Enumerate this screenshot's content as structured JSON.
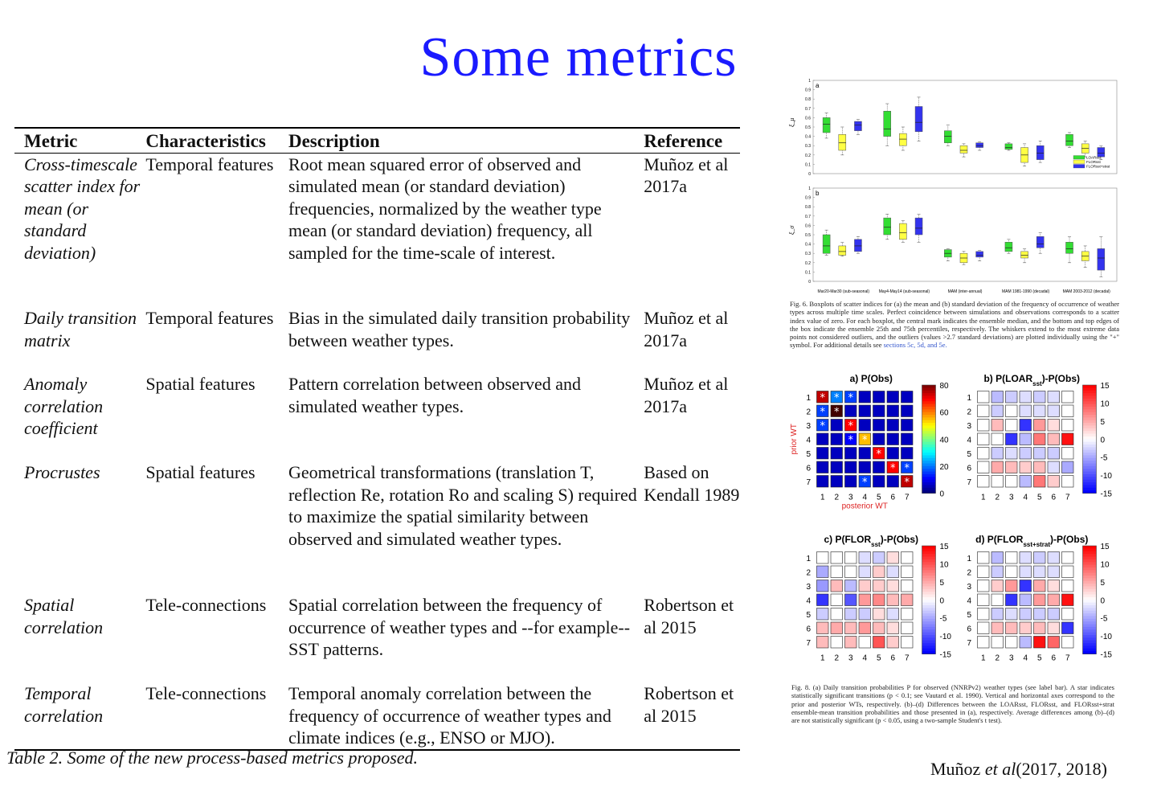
{
  "title": "Some metrics",
  "table": {
    "headers": [
      "Metric",
      "Characteristics",
      "Description",
      "Reference"
    ],
    "rows": [
      {
        "metric": "Cross-timescale scatter index for mean (or standard deviation)",
        "characteristics": "Temporal features",
        "description": "Root mean squared error of observed and simulated mean (or standard deviation) frequencies, normalized by the weather type mean (or standard deviation) frequency, all sampled for the time-scale of interest.",
        "reference": "Muñoz et al 2017a"
      },
      {
        "metric": "Daily transition matrix",
        "characteristics": "Temporal features",
        "description": "Bias in the simulated daily transition probability between weather types.",
        "reference": "Muñoz et al 2017a"
      },
      {
        "metric": "Anomaly correlation coefficient",
        "characteristics": "Spatial features",
        "description": "Pattern correlation between observed and simulated weather types.",
        "reference": "Muñoz et al 2017a"
      },
      {
        "metric": "Procrustes",
        "characteristics": "Spatial features",
        "description": "Geometrical transformations (translation T, reflection Re, rotation Ro and scaling S) required to maximize the spatial similarity between observed and simulated weather types.",
        "reference": "Based on Kendall 1989"
      },
      {
        "metric": "Spatial correlation",
        "characteristics": "Tele-connections",
        "description": "Spatial correlation between the frequency of occurrence of weather types and --for example-- SST patterns.",
        "reference": "Robertson et al 2015"
      },
      {
        "metric": "Temporal correlation",
        "characteristics": "Tele-connections",
        "description": "Temporal anomaly correlation between the frequency of occurrence of weather types and climate indices (e.g., ENSO or MJO).",
        "reference": "Robertson et al 2015"
      }
    ]
  },
  "table_caption": "Table 2. Some of the new process-based metrics proposed.",
  "credit": {
    "author": "Muñoz",
    "etal": "et al",
    "years": "(2017, 2018)"
  },
  "fig6": {
    "panel_a_label": "a",
    "panel_b_label": "b",
    "ylabel_a": "ξ_μ",
    "ylabel_b": "ξ_σ",
    "yticks": [
      "0",
      "0.1",
      "0.2",
      "0.3",
      "0.4",
      "0.5",
      "0.6",
      "0.7",
      "0.8",
      "0.9",
      "1"
    ],
    "groups": [
      "Mar20-Mar30 (sub-seasonal)",
      "May4-May14 (sub-seasonal)",
      "MAM (inter-annual)",
      "MAM 1981-1990 (decadal)",
      "MAM 2003-2012 (decadal)"
    ],
    "legend": [
      {
        "name": "LOARsst",
        "color": "#33dd33"
      },
      {
        "name": "FLORsst",
        "color": "#ffff44"
      },
      {
        "name": "FLORsst+strat",
        "color": "#3333ee"
      }
    ],
    "caption_prefix": "Fig. 6. Boxplots of scatter indices for (a) the mean and (b) standard deviation of the frequency of occurrence of weather types across multiple time scales. Perfect coincidence between simulations and observations corresponds to a scatter index value of zero. For each boxplot, the central mark indicates the ensemble median, and the bottom and top edges of the box indicate the ensemble 25th and 75th percentiles, respectively. The whiskers extend to the most extreme data points not considered outliers, and the outliers (values >2.7 standard deviations) are plotted individually using the \"+\" symbol. For additional details see ",
    "caption_links": "sections 5c, 5d, and 5e.",
    "chart_data": {
      "type": "boxplot",
      "panels": [
        {
          "name": "a",
          "boxes": [
            [
              [
                0.38,
                0.44,
                0.53,
                0.6,
                0.65
              ],
              [
                0.2,
                0.25,
                0.33,
                0.42,
                0.5
              ],
              [
                0.42,
                0.46,
                0.52,
                0.56,
                0.58
              ]
            ],
            [
              [
                0.3,
                0.4,
                0.48,
                0.67,
                0.75
              ],
              [
                0.25,
                0.3,
                0.37,
                0.43,
                0.5
              ],
              [
                0.35,
                0.45,
                0.55,
                0.72,
                0.82
              ]
            ],
            [
              [
                0.3,
                0.33,
                0.4,
                0.46,
                0.52
              ],
              [
                0.18,
                0.22,
                0.25,
                0.3,
                0.32
              ],
              [
                0.25,
                0.28,
                0.3,
                0.33,
                0.34
              ]
            ],
            [
              [
                0.25,
                0.26,
                0.28,
                0.32,
                0.33
              ],
              [
                0.08,
                0.12,
                0.2,
                0.28,
                0.32
              ],
              [
                0.12,
                0.15,
                0.22,
                0.3,
                0.35
              ]
            ],
            [
              [
                0.28,
                0.3,
                0.35,
                0.42,
                0.44
              ],
              [
                0.18,
                0.22,
                0.27,
                0.32,
                0.35
              ],
              [
                0.15,
                0.18,
                0.22,
                0.28,
                0.3
              ]
            ]
          ]
        },
        {
          "name": "b",
          "boxes": [
            [
              [
                0.28,
                0.3,
                0.38,
                0.5,
                0.55
              ],
              [
                0.27,
                0.28,
                0.32,
                0.38,
                0.42
              ],
              [
                0.3,
                0.32,
                0.38,
                0.45,
                0.48
              ]
            ],
            [
              [
                0.45,
                0.5,
                0.58,
                0.68,
                0.72
              ],
              [
                0.42,
                0.45,
                0.52,
                0.62,
                0.65
              ],
              [
                0.42,
                0.5,
                0.57,
                0.68,
                0.72
              ]
            ],
            [
              [
                0.22,
                0.26,
                0.3,
                0.34,
                0.35
              ],
              [
                0.18,
                0.2,
                0.25,
                0.3,
                0.32
              ],
              [
                0.22,
                0.26,
                0.28,
                0.32,
                0.33
              ]
            ],
            [
              [
                0.3,
                0.32,
                0.36,
                0.42,
                0.45
              ],
              [
                0.2,
                0.25,
                0.28,
                0.32,
                0.35
              ],
              [
                0.3,
                0.36,
                0.4,
                0.48,
                0.52
              ]
            ],
            [
              [
                0.2,
                0.3,
                0.35,
                0.42,
                0.48
              ],
              [
                0.15,
                0.22,
                0.27,
                0.32,
                0.38
              ],
              [
                0.05,
                0.12,
                0.25,
                0.35,
                0.48
              ]
            ]
          ]
        }
      ],
      "ylim": [
        0,
        1
      ]
    }
  },
  "fig8": {
    "panels": [
      {
        "title": "a) P(Obs)",
        "colorbar_ticks": [
          "80",
          "60",
          "40",
          "20",
          "0"
        ]
      },
      {
        "title": "b) P(LOAR",
        "sub": "sst",
        "suffix": ")-P(Obs)",
        "colorbar_ticks": [
          "15",
          "10",
          "5",
          "0",
          "-5",
          "-10",
          "-15"
        ]
      },
      {
        "title": "c) P(FLOR",
        "sub": "sst",
        "suffix": ")-P(Obs)",
        "colorbar_ticks": [
          "15",
          "10",
          "5",
          "0",
          "-5",
          "-10",
          "-15"
        ]
      },
      {
        "title": "d) P(FLOR",
        "sub": "sst+strat",
        "suffix": ")-P(Obs)",
        "colorbar_ticks": [
          "15",
          "10",
          "5",
          "0",
          "-5",
          "-10",
          "-15"
        ]
      }
    ],
    "axis_ticks": [
      "1",
      "2",
      "3",
      "4",
      "5",
      "6",
      "7"
    ],
    "ylabel": "prior WT",
    "xlabel": "posterior WT",
    "chart_data": {
      "type": "heatmap",
      "a_obs": [
        [
          75,
          20,
          15,
          5,
          5,
          5,
          5
        ],
        [
          15,
          85,
          5,
          5,
          5,
          5,
          5
        ],
        [
          15,
          5,
          70,
          5,
          5,
          5,
          5
        ],
        [
          5,
          5,
          10,
          55,
          5,
          5,
          5
        ],
        [
          5,
          5,
          5,
          5,
          70,
          5,
          5
        ],
        [
          5,
          5,
          5,
          5,
          5,
          70,
          15
        ],
        [
          5,
          5,
          5,
          15,
          5,
          5,
          75
        ]
      ],
      "a_stars": [
        [
          0,
          0
        ],
        [
          0,
          1
        ],
        [
          0,
          2
        ],
        [
          1,
          0
        ],
        [
          1,
          1
        ],
        [
          2,
          0
        ],
        [
          2,
          2
        ],
        [
          3,
          2
        ],
        [
          3,
          3
        ],
        [
          4,
          4
        ],
        [
          5,
          5
        ],
        [
          5,
          6
        ],
        [
          6,
          3
        ],
        [
          6,
          6
        ]
      ],
      "b_diff": [
        [
          0,
          -4,
          -3,
          -2,
          -3,
          -2,
          0
        ],
        [
          0,
          -3,
          0,
          -2,
          -2,
          -2,
          0
        ],
        [
          0,
          4,
          0,
          -12,
          6,
          2,
          0
        ],
        [
          0,
          0,
          -12,
          -4,
          8,
          4,
          14
        ],
        [
          0,
          -3,
          -2,
          -3,
          -3,
          -3,
          0
        ],
        [
          0,
          5,
          4,
          3,
          4,
          -2,
          -5
        ],
        [
          0,
          0,
          0,
          -4,
          8,
          3,
          0
        ]
      ],
      "c_diff": [
        [
          0,
          0,
          0,
          -2,
          -3,
          2,
          0
        ],
        [
          -5,
          0,
          0,
          -2,
          3,
          -2,
          0
        ],
        [
          -6,
          4,
          -4,
          3,
          3,
          2,
          0
        ],
        [
          -12,
          0,
          -10,
          6,
          7,
          4,
          5
        ],
        [
          -3,
          0,
          -3,
          -3,
          2,
          -2,
          0
        ],
        [
          4,
          5,
          4,
          6,
          4,
          2,
          0
        ],
        [
          4,
          0,
          4,
          0,
          10,
          3,
          0
        ]
      ],
      "d_diff": [
        [
          0,
          -4,
          0,
          -2,
          -3,
          -2,
          0
        ],
        [
          0,
          -3,
          0,
          -2,
          -2,
          -2,
          0
        ],
        [
          0,
          3,
          6,
          -12,
          5,
          2,
          0
        ],
        [
          0,
          0,
          -12,
          -4,
          6,
          5,
          14
        ],
        [
          0,
          -3,
          -2,
          -3,
          -3,
          -3,
          0
        ],
        [
          0,
          4,
          4,
          3,
          4,
          2,
          -12
        ],
        [
          0,
          0,
          0,
          -4,
          14,
          9,
          0
        ]
      ]
    },
    "caption": "Fig. 8. (a) Daily transition probabilities P for observed (NNRPv2) weather types (see label bar). A star indicates statistically significant transitions (p < 0.1; see Vautard et al. 1990). Vertical and horizontal axes correspond to the prior and posterior WTs, respectively. (b)–(d) Differences between the LOARsst, FLORsst, and FLORsst+strat ensemble-mean transition probabilities and those presented in (a), respectively. Average differences among (b)–(d) are not statistically significant (p < 0.05, using a two-sample Student's t test)."
  }
}
